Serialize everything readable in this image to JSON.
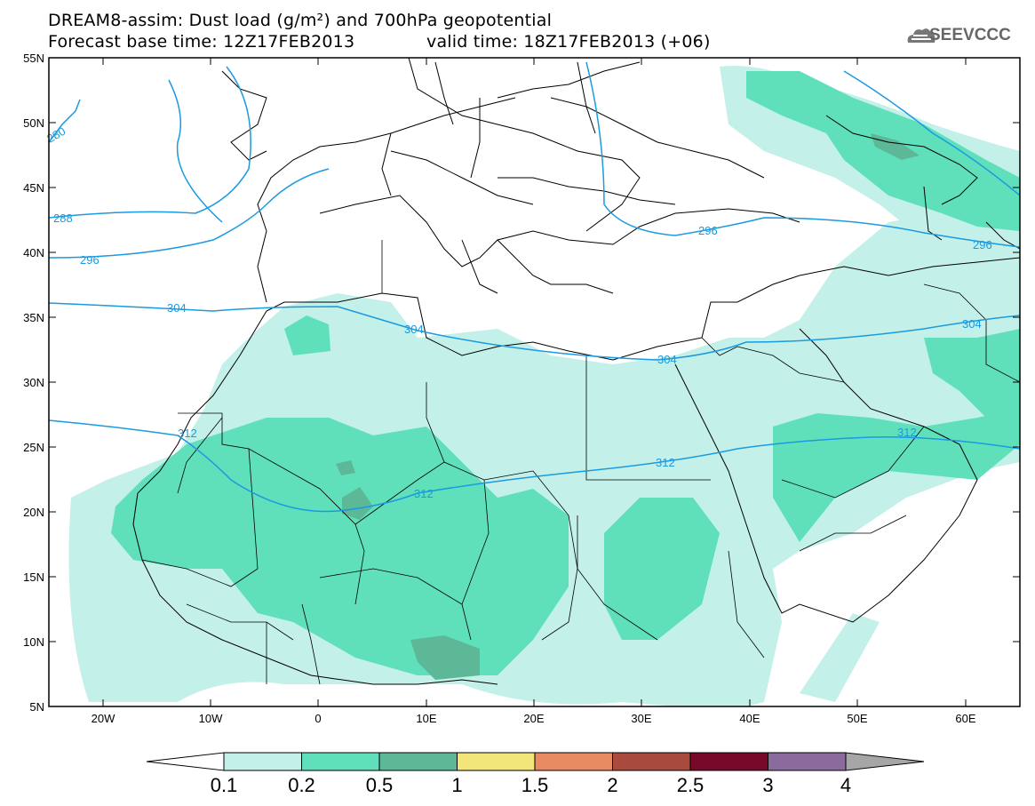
{
  "header": {
    "line1": "DREAM8-assim: Dust load (g/m²) and 700hPa geopotential",
    "line2_left": "Forecast base time: 12Z17FEB2013",
    "line2_right": "valid time: 18Z17FEB2013 (+06)",
    "logo_text": "SEEVCCC"
  },
  "map": {
    "lon_range": [
      -25,
      65
    ],
    "lat_range": [
      5,
      55
    ],
    "x_tick_labels": [
      "20W",
      "10W",
      "0",
      "10E",
      "20E",
      "30E",
      "40E",
      "50E",
      "60E"
    ],
    "y_tick_labels": [
      "55N",
      "50N",
      "45N",
      "40N",
      "35N",
      "30N",
      "25N",
      "20N",
      "15N",
      "10N",
      "5N"
    ],
    "contour_labels": [
      "280",
      "288",
      "296",
      "304",
      "304",
      "304",
      "312",
      "312",
      "312",
      "296",
      "296",
      "304",
      "312"
    ],
    "contour_color": "#1a9ae0"
  },
  "colorbar": {
    "labels": [
      "0.1",
      "0.2",
      "0.5",
      "1",
      "1.5",
      "2",
      "2.5",
      "3",
      "4"
    ],
    "colors": [
      "#c3f0e9",
      "#5fe0bb",
      "#5cb896",
      "#f2e57a",
      "#e88b63",
      "#a84b3e",
      "#770a2b",
      "#8b6a9e"
    ]
  }
}
